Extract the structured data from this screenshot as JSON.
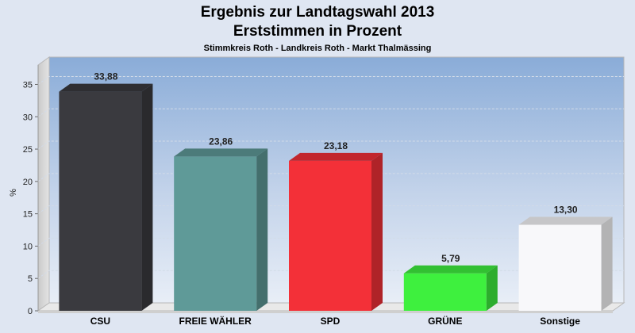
{
  "header": {
    "title_line1": "Ergebnis zur Landtagswahl 2013",
    "title_line2": "Erststimmen in Prozent",
    "subtitle": "Stimmkreis Roth - Landkreis Roth - Markt Thalmässing"
  },
  "chart_data": {
    "type": "bar",
    "title": "Ergebnis zur Landtagswahl 2013 Erststimmen in Prozent",
    "subtitle": "Stimmkreis Roth - Landkreis Roth - Markt Thalmässing",
    "xlabel": "",
    "ylabel": "%",
    "ylim": [
      0,
      38
    ],
    "yticks": [
      0,
      5,
      10,
      15,
      20,
      25,
      30,
      35
    ],
    "grid": true,
    "categories": [
      "CSU",
      "FREIE WÄHLER",
      "SPD",
      "GRÜNE",
      "Sonstige"
    ],
    "values": [
      33.88,
      23.86,
      23.18,
      5.79,
      13.3
    ],
    "value_labels": [
      "33,88",
      "23,86",
      "23,18",
      "5,79",
      "13,30"
    ],
    "colors": [
      "#3a3a3f",
      "#5f9a98",
      "#f33038",
      "#3ef03e",
      "#f8f8fa"
    ]
  }
}
